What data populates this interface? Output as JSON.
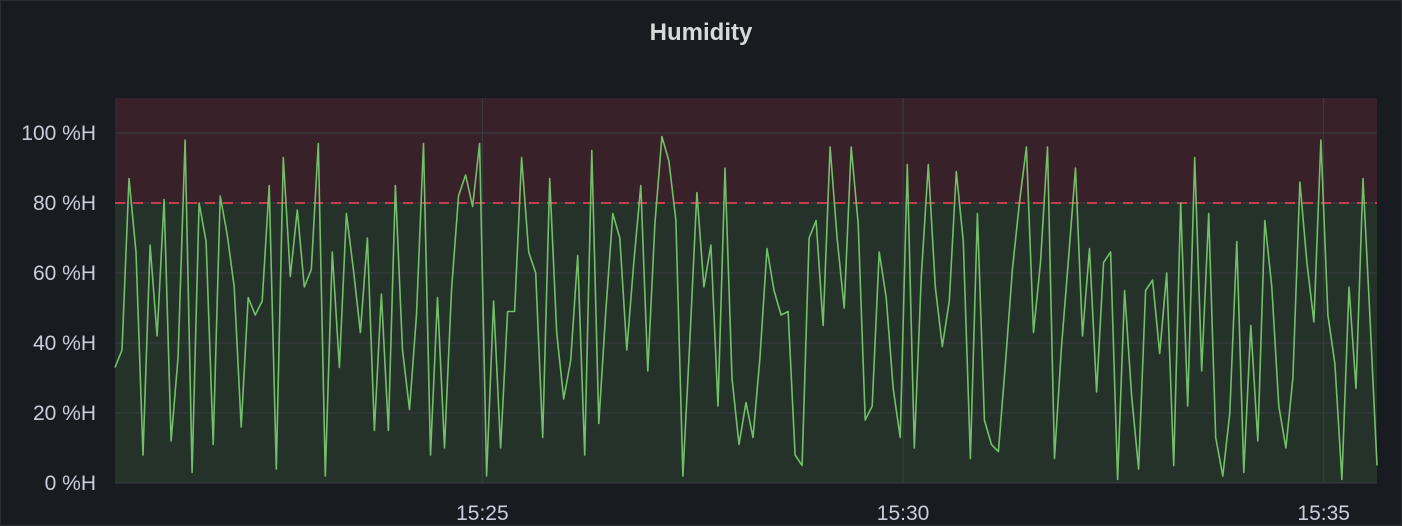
{
  "panel": {
    "title": "Humidity"
  },
  "colors": {
    "background": "#181b1f",
    "series_line": "#73bf69",
    "threshold_ok_fill": "#73bf69",
    "threshold_critical_fill": "#f2495c",
    "threshold_line": "#f2495c",
    "grid": "#3b3e44",
    "tick_text": "#ccccdc"
  },
  "chart_data": {
    "type": "line",
    "title": "Humidity",
    "xlabel": "",
    "ylabel": "",
    "unit": "%H",
    "ylim": [
      0,
      110
    ],
    "y_ticks": [
      0,
      20,
      40,
      60,
      80,
      100
    ],
    "y_tick_labels": [
      "0 %H",
      "20 %H",
      "40 %H",
      "60 %H",
      "80 %H",
      "100 %H"
    ],
    "x_range_minutes": [
      "15:20:38",
      "15:35:38"
    ],
    "x_ticks": [
      "15:25",
      "15:30",
      "15:35"
    ],
    "threshold": 80,
    "grid": true,
    "legend": "none",
    "series": [
      {
        "x_step_seconds": 5,
        "x_start": "15:20:38",
        "values": [
          33,
          38,
          87,
          66,
          8,
          68,
          42,
          81,
          12,
          36,
          98,
          3,
          80,
          69,
          11,
          82,
          71,
          56,
          16,
          53,
          48,
          52,
          85,
          4,
          93,
          59,
          78,
          56,
          61,
          97,
          2,
          66,
          33,
          77,
          61,
          43,
          70,
          15,
          54,
          15,
          85,
          38,
          21,
          48,
          97,
          8,
          53,
          10,
          55,
          82,
          88,
          79,
          97,
          2,
          52,
          10,
          49,
          49,
          93,
          66,
          60,
          13,
          87,
          43,
          24,
          35,
          65,
          8,
          95,
          17,
          49,
          77,
          70,
          38,
          63,
          85,
          32,
          74,
          99,
          92,
          75,
          2,
          41,
          83,
          56,
          68,
          22,
          90,
          30,
          11,
          23,
          13,
          36,
          67,
          55,
          48,
          49,
          8,
          5,
          70,
          75,
          45,
          96,
          70,
          50,
          96,
          74,
          18,
          22,
          66,
          53,
          27,
          13,
          91,
          10,
          59,
          91,
          56,
          39,
          52,
          89,
          69,
          7,
          77,
          18,
          11,
          9,
          34,
          61,
          80,
          96,
          43,
          63,
          96,
          7,
          39,
          64,
          90,
          42,
          67,
          26,
          63,
          66,
          1,
          55,
          25,
          4,
          55,
          58,
          37,
          60,
          5,
          80,
          22,
          93,
          32,
          77,
          13,
          2,
          20,
          69,
          3,
          45,
          12,
          75,
          56,
          22,
          10,
          30,
          86,
          63,
          46,
          98,
          48,
          34,
          1,
          56,
          27,
          87,
          47,
          5
        ]
      }
    ]
  }
}
